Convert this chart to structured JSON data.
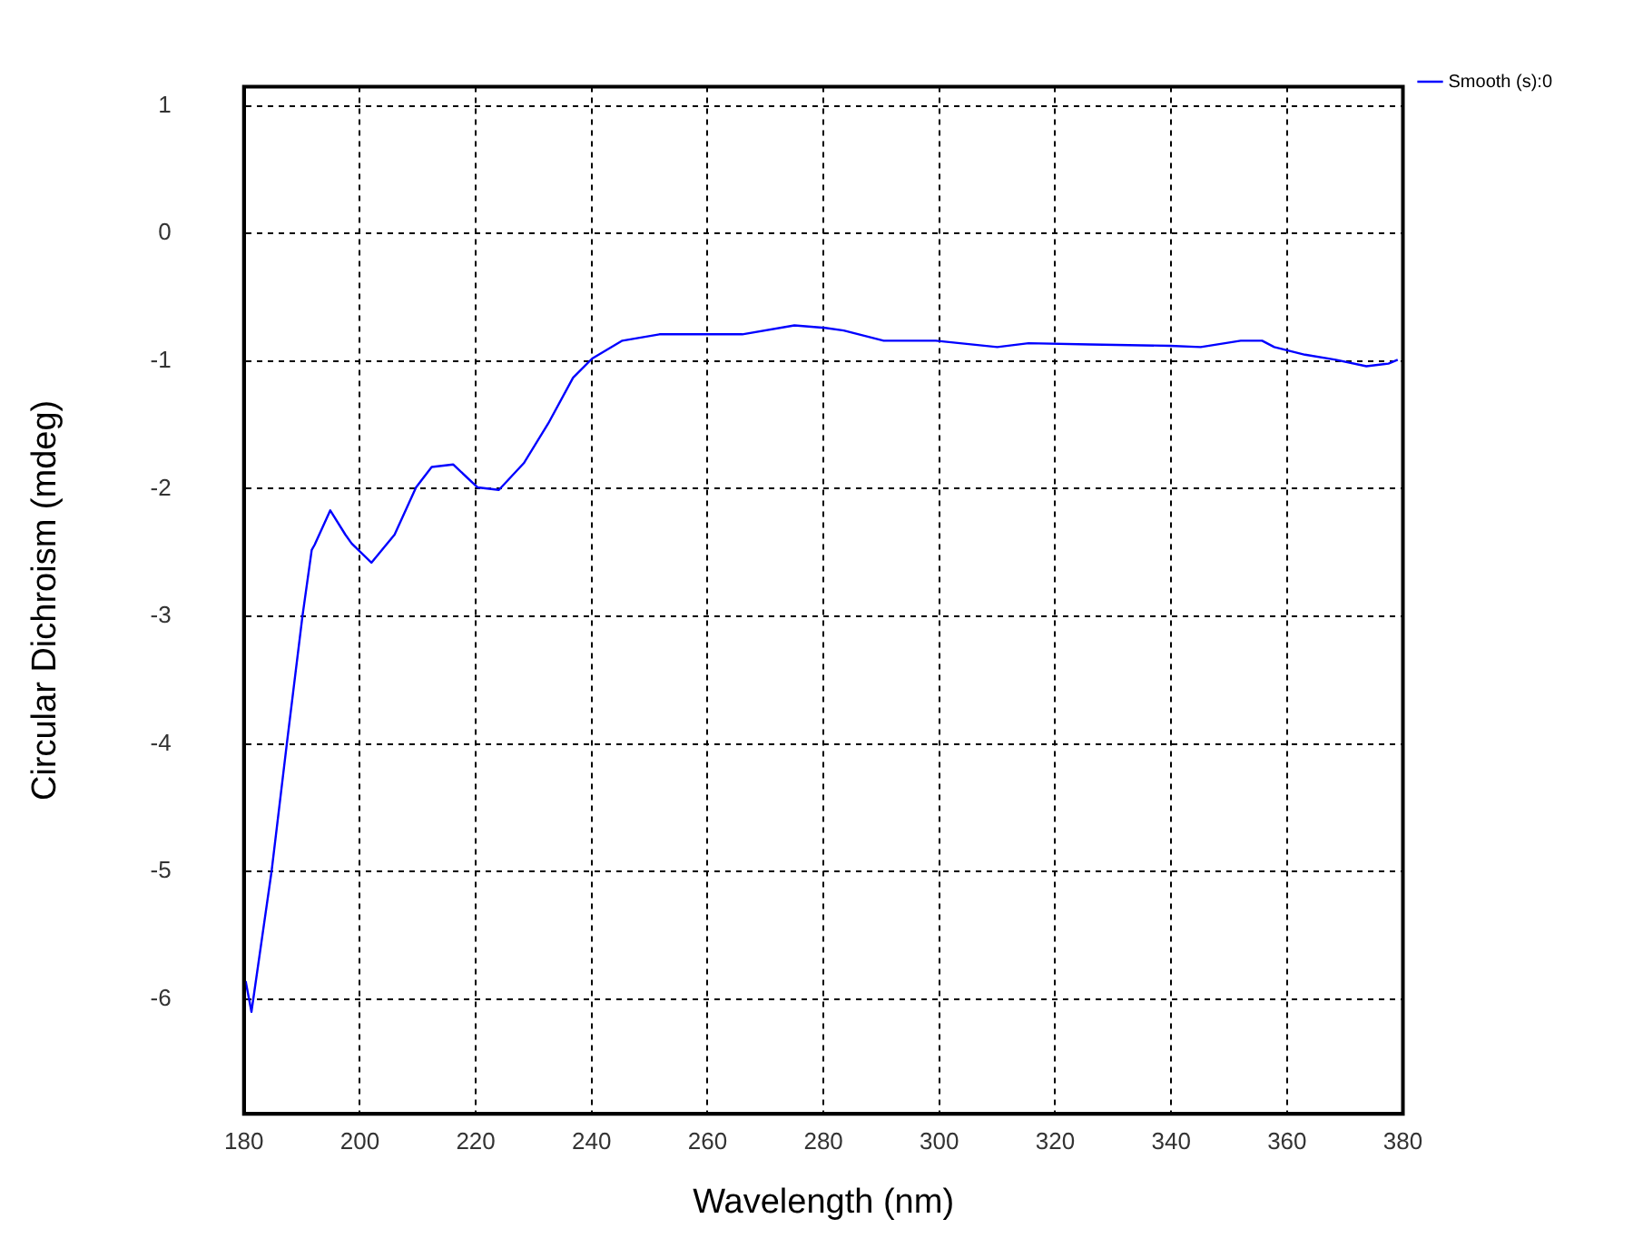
{
  "chart_data": {
    "type": "line",
    "xlabel": "Wavelength (nm)",
    "ylabel": "Circular Dichroism (mdeg)",
    "xlim": [
      180,
      380
    ],
    "xticks": [
      180,
      200,
      220,
      240,
      260,
      280,
      300,
      320,
      340,
      360,
      380
    ],
    "ylim": [
      -6.9,
      1.15
    ],
    "yticks": [
      1,
      0,
      -1,
      -2,
      -3,
      -4,
      -5,
      -6
    ],
    "grid": true,
    "legend": "top right",
    "marker": "none",
    "line_style": "solid",
    "series": [
      {
        "name": "Smooth (s):0",
        "color": "#0000ff",
        "x": [
          180.3,
          181.3,
          184.8,
          187.4,
          190.1,
          191.7,
          192.2,
          194.9,
          197.5,
          198.6,
          202.0,
          206.0,
          209.7,
          212.4,
          216.1,
          220.3,
          224.0,
          228.3,
          232.5,
          236.8,
          240.1,
          245.3,
          251.7,
          258,
          266,
          275,
          280.3,
          283.5,
          290.4,
          299.4,
          310,
          315.4,
          326,
          339.8,
          345.1,
          352,
          355.7,
          357.8,
          363.1,
          368.4,
          373.7,
          377.5,
          379.1
        ],
        "values": [
          -5.86,
          -6.1,
          -4.99,
          -4.0,
          -3.0,
          -2.48,
          -2.44,
          -2.17,
          -2.36,
          -2.43,
          -2.58,
          -2.36,
          -1.99,
          -1.83,
          -1.81,
          -1.99,
          -2.01,
          -1.8,
          -1.49,
          -1.13,
          -0.98,
          -0.84,
          -0.79,
          -0.79,
          -0.79,
          -0.72,
          -0.74,
          -0.76,
          -0.84,
          -0.84,
          -0.89,
          -0.86,
          -0.87,
          -0.88,
          -0.89,
          -0.84,
          -0.84,
          -0.89,
          -0.95,
          -0.99,
          -1.04,
          -1.02,
          -0.99
        ]
      }
    ]
  }
}
